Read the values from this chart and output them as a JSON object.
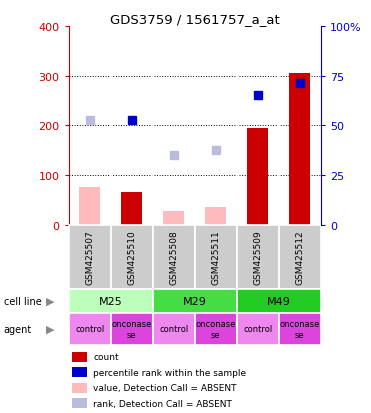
{
  "title": "GDS3759 / 1561757_a_at",
  "samples": [
    "GSM425507",
    "GSM425510",
    "GSM425508",
    "GSM425511",
    "GSM425509",
    "GSM425512"
  ],
  "cell_lines": [
    {
      "label": "M25",
      "start": 0,
      "end": 2,
      "color": "#bbffbb"
    },
    {
      "label": "M29",
      "start": 2,
      "end": 4,
      "color": "#44dd44"
    },
    {
      "label": "M49",
      "start": 4,
      "end": 6,
      "color": "#22cc22"
    }
  ],
  "agents": [
    "control",
    "onconase",
    "control",
    "onconase",
    "control",
    "onconase"
  ],
  "agent_colors": {
    "control": "#ee88ee",
    "onconase": "#dd44dd"
  },
  "count_values": [
    null,
    65,
    null,
    null,
    195,
    305
  ],
  "rank_values": [
    null,
    210,
    null,
    null,
    260,
    285
  ],
  "count_absent": [
    75,
    null,
    28,
    35,
    null,
    null
  ],
  "rank_absent": [
    210,
    null,
    140,
    150,
    null,
    null
  ],
  "ylim_left": [
    0,
    400
  ],
  "ylim_right": [
    0,
    100
  ],
  "yticks_left": [
    0,
    100,
    200,
    300,
    400
  ],
  "yticks_right": [
    0,
    25,
    50,
    75,
    100
  ],
  "ytick_labels_right": [
    "0",
    "25",
    "50",
    "75",
    "100%"
  ],
  "color_count": "#cc0000",
  "color_rank": "#0000cc",
  "color_count_absent": "#ffbbbb",
  "color_rank_absent": "#bbbbdd",
  "color_sample_bg": "#cccccc",
  "bar_width": 0.5,
  "marker_size": 6,
  "legend_items": [
    {
      "color": "#cc0000",
      "label": "count"
    },
    {
      "color": "#0000cc",
      "label": "percentile rank within the sample"
    },
    {
      "color": "#ffbbbb",
      "label": "value, Detection Call = ABSENT"
    },
    {
      "color": "#bbbbdd",
      "label": "rank, Detection Call = ABSENT"
    }
  ]
}
